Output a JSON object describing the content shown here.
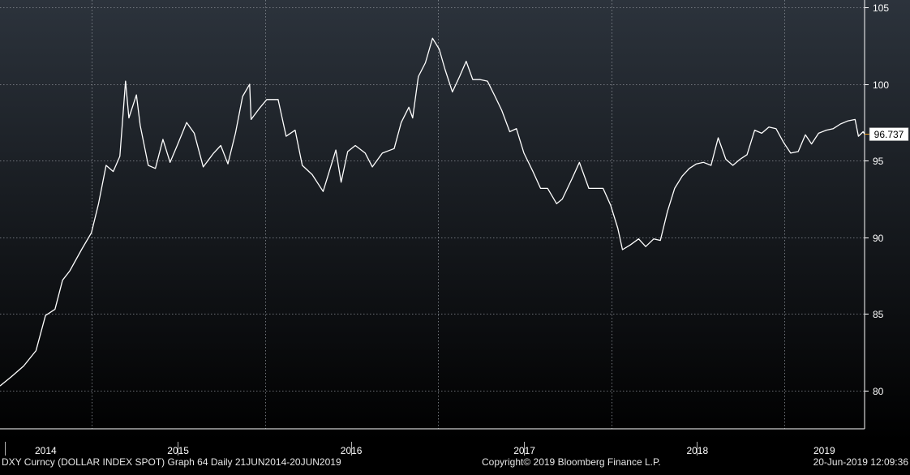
{
  "colors": {
    "background_top": "#2c333c",
    "background_bottom": "#000000",
    "line": "#ffffff",
    "grid": "#8a8f96",
    "last_value_marker": "#f5a623",
    "label_box": "#ffffff"
  },
  "footer": {
    "left": "DXY Curncy (DOLLAR INDEX SPOT) Graph 64  Daily 21JUN2014-20JUN2019",
    "center": "Copyright© 2019 Bloomberg Finance L.P.",
    "right": "20-Jun-2019 12:09:36"
  },
  "chart_data": {
    "type": "line",
    "title": "",
    "xlabel": "",
    "ylabel": "",
    "grid": true,
    "ylim": [
      77.5,
      105.5
    ],
    "xlim": [
      "2014-06-21",
      "2019-06-20"
    ],
    "yticks": [
      80,
      85,
      90,
      95,
      100,
      105
    ],
    "year_labels": [
      "2014",
      "2015",
      "2016",
      "2017",
      "2018",
      "2019"
    ],
    "last_value_label": "96.737",
    "series": [
      {
        "name": "",
        "x": [
          "2014-06-21",
          "2014-07-15",
          "2014-08-10",
          "2014-09-05",
          "2014-09-25",
          "2014-10-15",
          "2014-10-31",
          "2014-11-15",
          "2014-12-10",
          "2014-12-31",
          "2015-01-15",
          "2015-01-31",
          "2015-02-15",
          "2015-03-01",
          "2015-03-13",
          "2015-03-20",
          "2015-04-05",
          "2015-04-13",
          "2015-04-30",
          "2015-05-15",
          "2015-05-31",
          "2015-06-15",
          "2015-06-30",
          "2015-07-20",
          "2015-08-05",
          "2015-08-24",
          "2015-09-15",
          "2015-09-30",
          "2015-10-15",
          "2015-10-31",
          "2015-11-15",
          "2015-11-30",
          "2015-12-03",
          "2015-12-20",
          "2016-01-05",
          "2016-01-29",
          "2016-02-15",
          "2016-03-05",
          "2016-03-20",
          "2016-04-10",
          "2016-05-03",
          "2016-05-30",
          "2016-06-10",
          "2016-06-24",
          "2016-07-10",
          "2016-07-31",
          "2016-08-15",
          "2016-09-05",
          "2016-09-30",
          "2016-10-15",
          "2016-10-31",
          "2016-11-08",
          "2016-11-20",
          "2016-12-05",
          "2016-12-20",
          "2017-01-03",
          "2017-01-15",
          "2017-01-31",
          "2017-02-15",
          "2017-03-01",
          "2017-03-15",
          "2017-03-31",
          "2017-04-15",
          "2017-05-01",
          "2017-05-15",
          "2017-06-01",
          "2017-06-15",
          "2017-07-01",
          "2017-07-20",
          "2017-08-05",
          "2017-08-20",
          "2017-09-08",
          "2017-09-20",
          "2017-10-10",
          "2017-10-26",
          "2017-11-15",
          "2017-11-30",
          "2017-12-15",
          "2017-12-31",
          "2018-01-15",
          "2018-01-25",
          "2018-02-10",
          "2018-02-28",
          "2018-03-15",
          "2018-04-01",
          "2018-04-15",
          "2018-04-30",
          "2018-05-15",
          "2018-05-31",
          "2018-06-15",
          "2018-06-30",
          "2018-07-15",
          "2018-07-31",
          "2018-08-15",
          "2018-08-31",
          "2018-09-15",
          "2018-09-30",
          "2018-10-15",
          "2018-10-31",
          "2018-11-15",
          "2018-11-30",
          "2018-12-15",
          "2018-12-31",
          "2019-01-15",
          "2019-01-31",
          "2019-02-15",
          "2019-02-28",
          "2019-03-15",
          "2019-03-31",
          "2019-04-15",
          "2019-04-30",
          "2019-05-15",
          "2019-05-31",
          "2019-06-07",
          "2019-06-17",
          "2019-06-20"
        ],
        "y": [
          80.3,
          80.9,
          81.6,
          82.6,
          84.9,
          85.3,
          87.2,
          87.8,
          89.2,
          90.3,
          92.2,
          94.7,
          94.3,
          95.3,
          100.2,
          97.8,
          99.3,
          97.3,
          94.7,
          94.5,
          96.4,
          94.9,
          96.0,
          97.5,
          96.8,
          94.6,
          95.5,
          96.0,
          94.8,
          96.8,
          99.2,
          100.0,
          97.7,
          98.4,
          99.0,
          99.0,
          96.6,
          97.0,
          94.7,
          94.1,
          93.0,
          95.7,
          93.6,
          95.6,
          96.0,
          95.5,
          94.6,
          95.5,
          95.8,
          97.5,
          98.5,
          97.8,
          100.5,
          101.4,
          103.0,
          102.3,
          101.0,
          99.5,
          100.5,
          101.5,
          100.3,
          100.3,
          100.2,
          99.2,
          98.3,
          96.9,
          97.1,
          95.5,
          94.3,
          93.2,
          93.2,
          92.2,
          92.5,
          93.8,
          94.9,
          93.2,
          93.2,
          93.2,
          92.1,
          90.6,
          89.2,
          89.5,
          89.9,
          89.4,
          89.9,
          89.8,
          91.7,
          93.2,
          94.0,
          94.5,
          94.8,
          94.9,
          94.7,
          96.5,
          95.1,
          94.7,
          95.1,
          95.4,
          97.0,
          96.8,
          97.2,
          97.1,
          96.2,
          95.5,
          95.6,
          96.7,
          96.1,
          96.8,
          97.0,
          97.1,
          97.4,
          97.6,
          97.7,
          96.6,
          96.9,
          96.737
        ]
      }
    ]
  }
}
